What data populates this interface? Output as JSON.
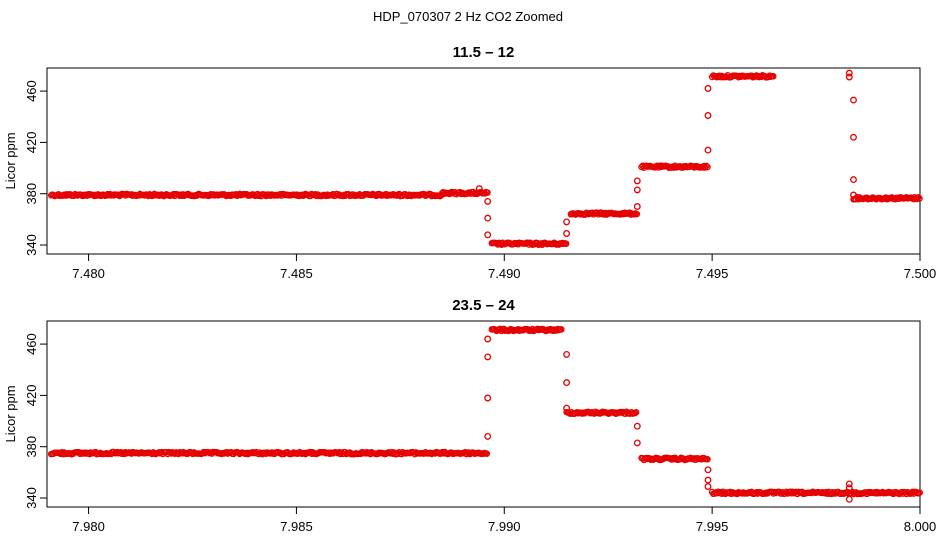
{
  "page_title": "HDP_070307  2 Hz CO2 Zoomed",
  "chart_data": [
    {
      "type": "scatter",
      "title": "11.5 – 12",
      "xlabel": "",
      "ylabel": "Licor ppm",
      "xlim": [
        7.479,
        7.5
      ],
      "ylim": [
        333,
        478
      ],
      "x_ticks": [
        "7.480",
        "7.485",
        "7.490",
        "7.495",
        "7.500"
      ],
      "y_ticks": [
        "340",
        "380",
        "420",
        "460"
      ],
      "marker_color": "#e60000",
      "grid": false,
      "segments": [
        {
          "x_start": 7.4791,
          "x_end": 7.4885,
          "y": 379.0
        },
        {
          "x_start": 7.4885,
          "x_end": 7.4896,
          "y": 380.5
        },
        {
          "x_start": 7.4897,
          "x_end": 7.4915,
          "y": 341.0
        },
        {
          "x_start": 7.4916,
          "x_end": 7.4932,
          "y": 364.5
        },
        {
          "x_start": 7.4933,
          "x_end": 7.4949,
          "y": 401.0
        },
        {
          "x_start": 7.495,
          "x_end": 7.4965,
          "y": 471.5
        },
        {
          "x_start": 7.4984,
          "x_end": 7.5,
          "y": 376.5
        }
      ],
      "points": [
        {
          "x": 7.4894,
          "y": 384.0
        },
        {
          "x": 7.4896,
          "y": 374.0
        },
        {
          "x": 7.4896,
          "y": 361.0
        },
        {
          "x": 7.4896,
          "y": 348.0
        },
        {
          "x": 7.4915,
          "y": 358.0
        },
        {
          "x": 7.4915,
          "y": 349.0
        },
        {
          "x": 7.4932,
          "y": 370.0
        },
        {
          "x": 7.4932,
          "y": 383.0
        },
        {
          "x": 7.4932,
          "y": 390.0
        },
        {
          "x": 7.4949,
          "y": 414.0
        },
        {
          "x": 7.4949,
          "y": 441.0
        },
        {
          "x": 7.4949,
          "y": 462.0
        },
        {
          "x": 7.4983,
          "y": 471.0
        },
        {
          "x": 7.4983,
          "y": 474.0
        },
        {
          "x": 7.4984,
          "y": 453.0
        },
        {
          "x": 7.4984,
          "y": 424.0
        },
        {
          "x": 7.4984,
          "y": 391.0
        },
        {
          "x": 7.4984,
          "y": 379.0
        }
      ]
    },
    {
      "type": "scatter",
      "title": "23.5 – 24",
      "xlabel": "",
      "ylabel": "Licor ppm",
      "xlim": [
        7.979,
        8.0
      ],
      "ylim": [
        333,
        478
      ],
      "x_ticks": [
        "7.980",
        "7.985",
        "7.990",
        "7.995",
        "8.000"
      ],
      "y_ticks": [
        "340",
        "380",
        "420",
        "460"
      ],
      "marker_color": "#e60000",
      "grid": false,
      "segments": [
        {
          "x_start": 7.9791,
          "x_end": 7.9896,
          "y": 375.0
        },
        {
          "x_start": 7.9897,
          "x_end": 7.9914,
          "y": 471.0
        },
        {
          "x_start": 7.9915,
          "x_end": 7.9932,
          "y": 406.5
        },
        {
          "x_start": 7.9933,
          "x_end": 7.9949,
          "y": 370.5
        },
        {
          "x_start": 7.995,
          "x_end": 8.0,
          "y": 344.0
        }
      ],
      "points": [
        {
          "x": 7.9896,
          "y": 388.0
        },
        {
          "x": 7.9896,
          "y": 418.0
        },
        {
          "x": 7.9896,
          "y": 450.0
        },
        {
          "x": 7.9896,
          "y": 464.0
        },
        {
          "x": 7.9915,
          "y": 452.0
        },
        {
          "x": 7.9915,
          "y": 430.0
        },
        {
          "x": 7.9915,
          "y": 410.0
        },
        {
          "x": 7.9932,
          "y": 396.0
        },
        {
          "x": 7.9932,
          "y": 383.0
        },
        {
          "x": 7.9949,
          "y": 362.0
        },
        {
          "x": 7.9949,
          "y": 354.0
        },
        {
          "x": 7.9949,
          "y": 349.0
        },
        {
          "x": 7.9983,
          "y": 351.0
        },
        {
          "x": 7.9983,
          "y": 348.0
        },
        {
          "x": 7.9983,
          "y": 339.0
        }
      ]
    }
  ]
}
